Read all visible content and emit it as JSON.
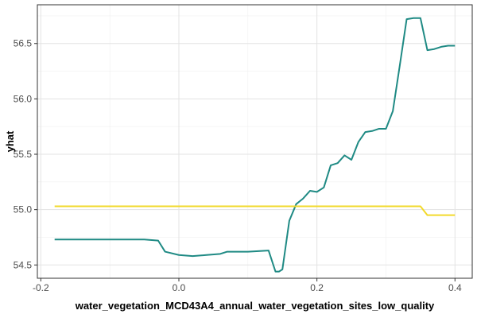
{
  "chart_data": {
    "type": "line",
    "title": "",
    "xlabel": "water_vegetation_MCD43A4_annual_water_vegetation_sites_low_quality",
    "ylabel": "yhat",
    "xlim": [
      -0.205,
      0.425
    ],
    "ylim": [
      54.38,
      56.85
    ],
    "x_ticks": [
      -0.2,
      0.0,
      0.2,
      0.4
    ],
    "x_tick_labels": [
      "-0.2",
      "0.0",
      "0.2",
      "0.4"
    ],
    "y_ticks": [
      54.5,
      55.0,
      55.5,
      56.0,
      56.5
    ],
    "y_tick_labels": [
      "54.5",
      "55.0",
      "55.5",
      "56.0",
      "56.5"
    ],
    "grid": true,
    "legend": "none",
    "series": [
      {
        "color": "#1f8a84",
        "x": [
          -0.18,
          -0.05,
          -0.03,
          -0.02,
          0.0,
          0.02,
          0.04,
          0.06,
          0.07,
          0.1,
          0.13,
          0.14,
          0.145,
          0.15,
          0.16,
          0.17,
          0.18,
          0.19,
          0.2,
          0.21,
          0.22,
          0.23,
          0.24,
          0.25,
          0.26,
          0.27,
          0.28,
          0.29,
          0.3,
          0.31,
          0.32,
          0.33,
          0.34,
          0.35,
          0.36,
          0.37,
          0.38,
          0.39,
          0.4
        ],
        "y": [
          54.73,
          54.73,
          54.72,
          54.62,
          54.59,
          54.58,
          54.59,
          54.6,
          54.62,
          54.62,
          54.63,
          54.44,
          54.44,
          54.46,
          54.9,
          55.05,
          55.1,
          55.17,
          55.16,
          55.2,
          55.4,
          55.42,
          55.49,
          55.45,
          55.61,
          55.7,
          55.71,
          55.73,
          55.73,
          55.89,
          56.3,
          56.72,
          56.73,
          56.73,
          56.44,
          56.45,
          56.47,
          56.48,
          56.48
        ]
      },
      {
        "color": "#f2d92b",
        "x": [
          -0.18,
          0.35,
          0.36,
          0.4
        ],
        "y": [
          55.03,
          55.03,
          54.95,
          54.95
        ]
      }
    ]
  }
}
